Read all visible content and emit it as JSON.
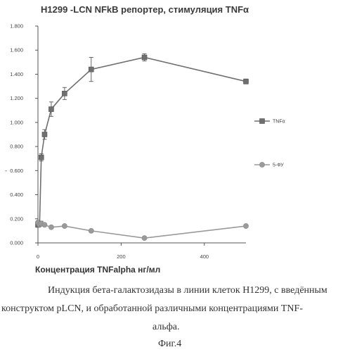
{
  "chart_data": {
    "type": "line",
    "title": "H1299 -LCN NFkB репортер, стимуляция TNFα",
    "xlabel": "Концентрация  TNFalpha нг/мл",
    "ylabel": "",
    "xlim": [
      0,
      500
    ],
    "ylim": [
      0,
      1.8
    ],
    "x_ticks": [
      "0",
      "200",
      "400"
    ],
    "y_ticks": [
      "0.000",
      "0.200",
      "0.400",
      "0.600",
      "0.800",
      "1.000",
      "1.200",
      "1.400",
      "1.600",
      "1.800"
    ],
    "grid": false,
    "legend_position": "right",
    "series": [
      {
        "name": "TNFα",
        "marker": "square",
        "color": "#6f6f6f",
        "x": [
          0,
          4,
          8,
          16,
          32,
          64,
          128,
          256,
          500
        ],
        "y": [
          0.15,
          0.16,
          0.71,
          0.9,
          1.11,
          1.24,
          1.44,
          1.54,
          1.34
        ],
        "error": [
          0.02,
          0.02,
          0.03,
          0.04,
          0.06,
          0.05,
          0.1,
          0.03,
          0.02
        ]
      },
      {
        "name": "5-ФУ",
        "marker": "circle",
        "color": "#9a9a9a",
        "x": [
          0,
          4,
          8,
          16,
          32,
          64,
          128,
          256,
          500
        ],
        "y": [
          0.17,
          0.15,
          0.16,
          0.15,
          0.13,
          0.14,
          0.1,
          0.04,
          0.14
        ],
        "error": [
          0.0,
          0.0,
          0.02,
          0.0,
          0.0,
          0.0,
          0.0,
          0.0,
          0.0
        ]
      }
    ],
    "annotations": [
      "-"
    ]
  },
  "caption": {
    "line1": "Индукция бета-галактозидазы в линии клеток H1299, с введённым",
    "line2": "конструктом pLCN, и обработанной различными концентрациями TNF-",
    "line3": "альфа.",
    "figure_label": "Фиг.4"
  }
}
